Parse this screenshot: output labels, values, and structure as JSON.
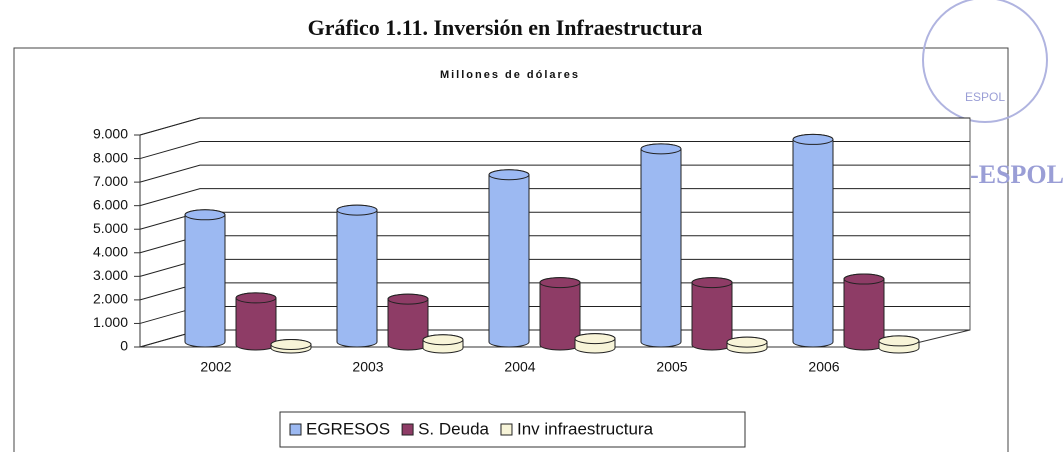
{
  "chart_data": {
    "type": "bar3d",
    "title": "Gráfico 1.11. Inversión en Infraestructura",
    "subtitle": "Millones de dólares",
    "annotations": [
      "CIB -ESPOL",
      "ESPOL"
    ],
    "categories": [
      "2002",
      "2003",
      "2004",
      "2005",
      "2006"
    ],
    "series": [
      {
        "name": "EGRESOS",
        "color": "#9cb9f2",
        "values": [
          5400,
          5600,
          7100,
          8200,
          8600
        ]
      },
      {
        "name": "S. Deuda",
        "color": "#8e3c66",
        "values": [
          2000,
          1950,
          2650,
          2650,
          2800
        ]
      },
      {
        "name": "Inv infraestructura",
        "color": "#f7f4d8",
        "values": [
          150,
          350,
          400,
          250,
          300
        ]
      }
    ],
    "ylim": [
      0,
      9000
    ],
    "yticks": [
      0,
      {
        "value": 1000,
        "label": "1.000"
      },
      {
        "value": 2000,
        "label": "2.000"
      },
      {
        "value": 3000,
        "label": "3.000"
      },
      {
        "value": 4000,
        "label": "4.000"
      },
      {
        "value": 5000,
        "label": "5.000"
      },
      {
        "value": 6000,
        "label": "6.000"
      },
      {
        "value": 7000,
        "label": "7.000"
      },
      {
        "value": 8000,
        "label": "8.000"
      },
      {
        "value": 9000,
        "label": "9.000"
      }
    ],
    "grid": true,
    "legend": "bottom"
  }
}
